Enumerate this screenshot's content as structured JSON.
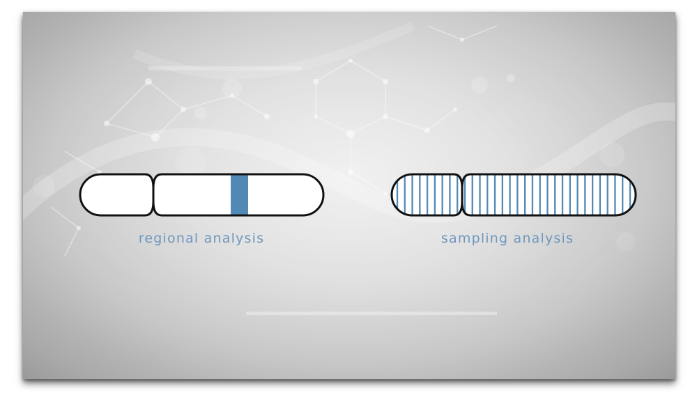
{
  "colors": {
    "accent": "#5289b4",
    "caption": "#6d97bd",
    "outline": "#111111",
    "fill": "#ffffff"
  },
  "chromosomes": [
    {
      "id": "regional",
      "caption": "regional analysis",
      "pattern": "single-band",
      "bands": 1
    },
    {
      "id": "sampling",
      "caption": "sampling analysis",
      "pattern": "striped",
      "bands": 32
    }
  ]
}
